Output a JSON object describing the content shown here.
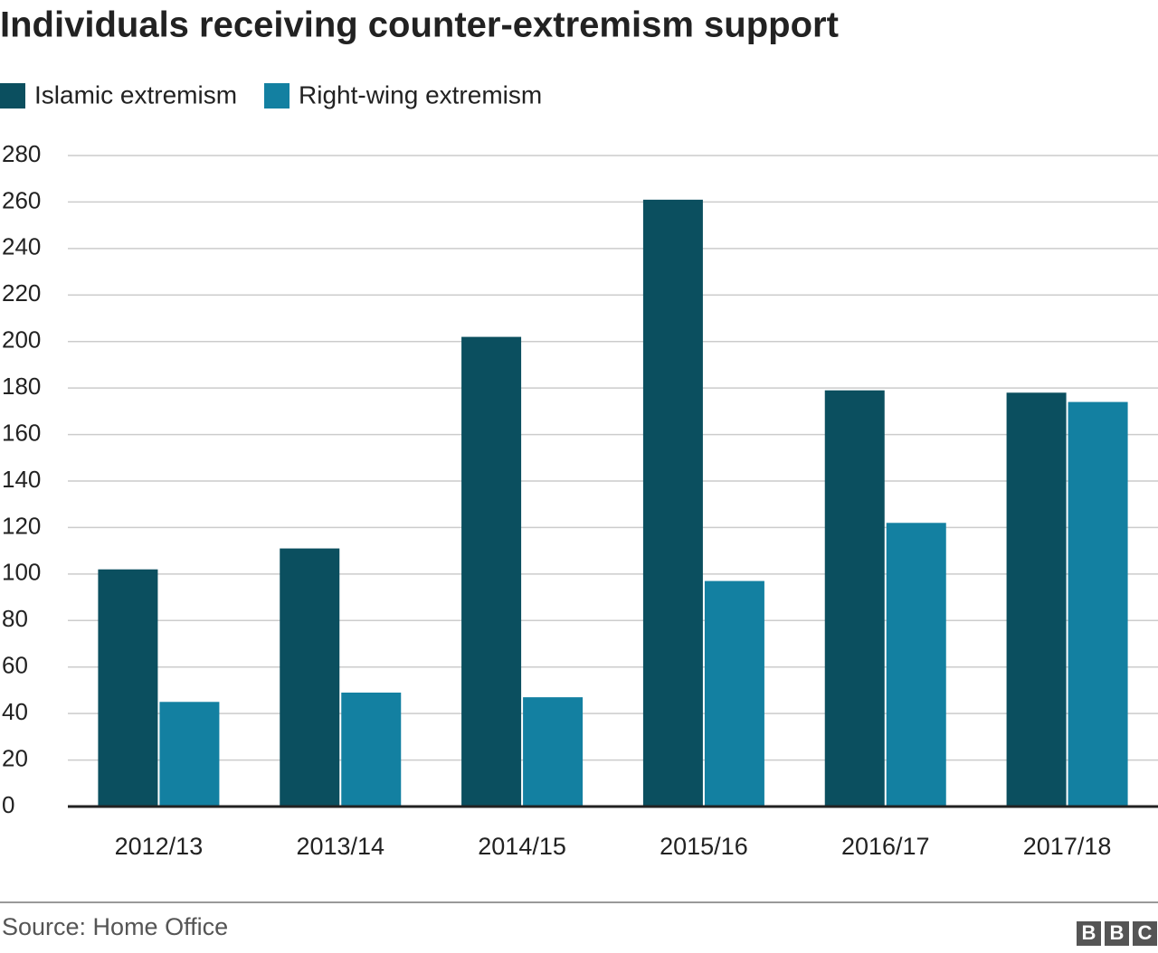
{
  "chart_data": {
    "type": "bar",
    "title": "Individuals receiving counter-extremism support",
    "categories": [
      "2012/13",
      "2013/14",
      "2014/15",
      "2015/16",
      "2016/17",
      "2017/18"
    ],
    "series": [
      {
        "name": "Islamic extremism",
        "color": "#0b4f5f",
        "values": [
          102,
          111,
          202,
          261,
          179,
          178
        ]
      },
      {
        "name": "Right-wing extremism",
        "color": "#1380a1",
        "values": [
          45,
          49,
          47,
          97,
          122,
          174
        ]
      }
    ],
    "ylim": [
      0,
      280
    ],
    "yticks": [
      0,
      20,
      40,
      60,
      80,
      100,
      120,
      140,
      160,
      180,
      200,
      220,
      240,
      260,
      280
    ],
    "grid": true,
    "legend": "top",
    "source": "Source: Home Office",
    "logo": [
      "B",
      "B",
      "C"
    ]
  }
}
